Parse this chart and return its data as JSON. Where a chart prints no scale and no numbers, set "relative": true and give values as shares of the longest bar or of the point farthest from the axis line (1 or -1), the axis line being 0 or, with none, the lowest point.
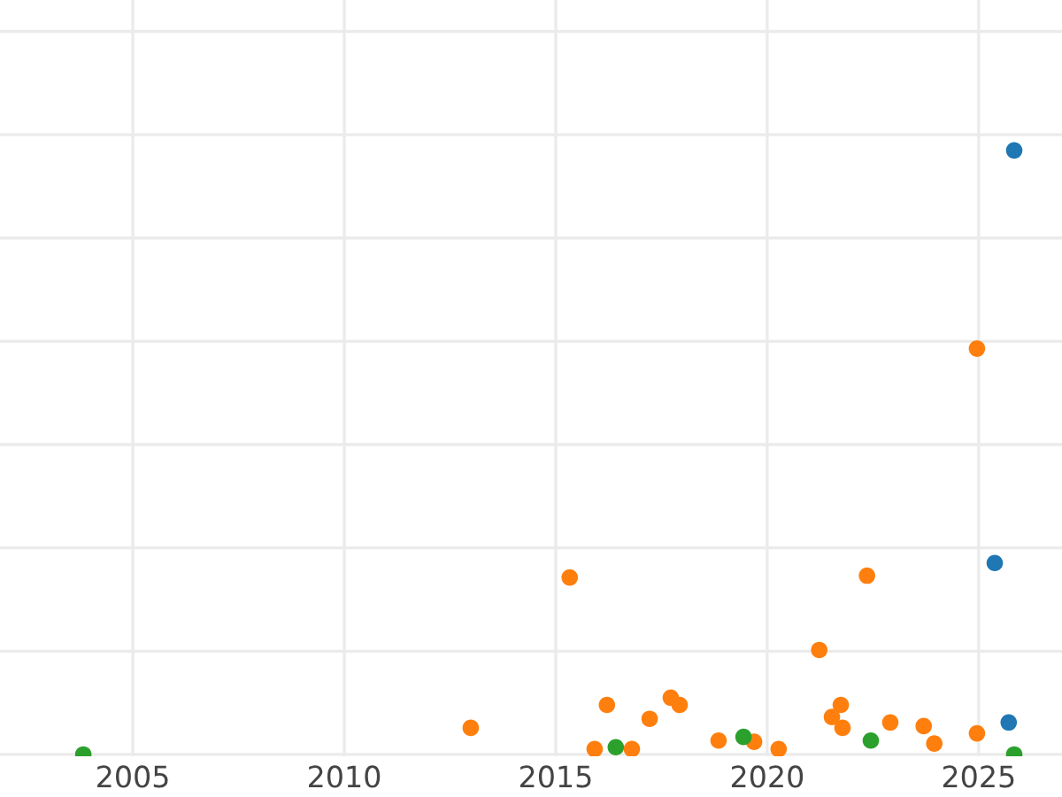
{
  "chart_data": {
    "type": "scatter",
    "relative": true,
    "xlim": [
      2001.86,
      2026.97
    ],
    "xticks": [
      2005,
      2010,
      2015,
      2020,
      2025
    ],
    "tick_labels": "x",
    "grid": true,
    "legend": false,
    "marker": "circle",
    "series": [
      {
        "color": "#1f77b4",
        "x": [
          2025.84,
          2025.38,
          2025.71
        ],
        "values": [
          1.0,
          0.317,
          0.053
        ]
      },
      {
        "color": "#ff7f0e",
        "x": [
          2024.96,
          2015.33,
          2022.36,
          2021.23,
          2012.99,
          2015.92,
          2016.21,
          2016.8,
          2017.22,
          2017.72,
          2017.93,
          2018.85,
          2019.69,
          2020.27,
          2021.53,
          2021.74,
          2021.78,
          2022.91,
          2023.7,
          2023.95,
          2024.96
        ],
        "values": [
          0.672,
          0.293,
          0.296,
          0.173,
          0.044,
          0.009,
          0.082,
          0.009,
          0.059,
          0.094,
          0.082,
          0.023,
          0.021,
          0.009,
          0.062,
          0.082,
          0.044,
          0.053,
          0.047,
          0.018,
          0.035
        ]
      },
      {
        "color": "#2ca02c",
        "x": [
          2003.83,
          2016.42,
          2019.44,
          2022.45,
          2025.84
        ],
        "values": [
          0.0,
          0.012,
          0.029,
          0.023,
          0.0
        ]
      }
    ]
  }
}
